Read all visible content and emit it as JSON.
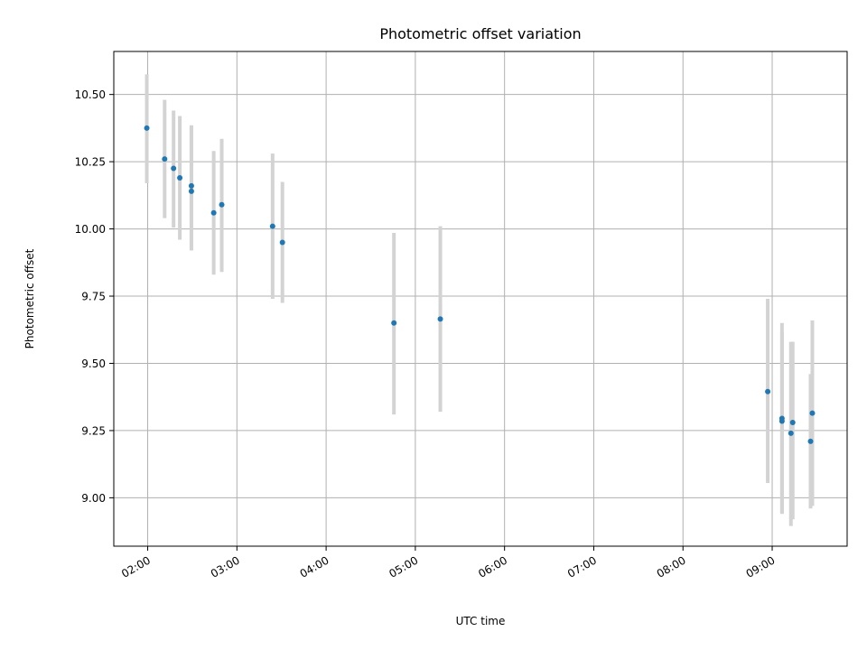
{
  "chart_data": {
    "type": "scatter",
    "title": "Photometric offset variation",
    "xlabel": "UTC time",
    "ylabel": "Photometric offset",
    "x_unit": "hours (UTC)",
    "xlim": [
      1.62,
      9.84
    ],
    "ylim": [
      8.82,
      10.66
    ],
    "grid": true,
    "x_ticks": [
      {
        "value": 2,
        "label": "02:00"
      },
      {
        "value": 3,
        "label": "03:00"
      },
      {
        "value": 4,
        "label": "04:00"
      },
      {
        "value": 5,
        "label": "05:00"
      },
      {
        "value": 6,
        "label": "06:00"
      },
      {
        "value": 7,
        "label": "07:00"
      },
      {
        "value": 8,
        "label": "08:00"
      },
      {
        "value": 9,
        "label": "09:00"
      }
    ],
    "y_ticks": [
      {
        "value": 9.0,
        "label": "9.00"
      },
      {
        "value": 9.25,
        "label": "9.25"
      },
      {
        "value": 9.5,
        "label": "9.50"
      },
      {
        "value": 9.75,
        "label": "9.75"
      },
      {
        "value": 10.0,
        "label": "10.00"
      },
      {
        "value": 10.25,
        "label": "10.25"
      },
      {
        "value": 10.5,
        "label": "10.50"
      }
    ],
    "point_color": "#1f77b4",
    "errorbar_color": "#d3d3d3",
    "points": [
      {
        "x": 1.99,
        "y": 10.375,
        "err_low": 10.17,
        "err_high": 10.575
      },
      {
        "x": 2.19,
        "y": 10.26,
        "err_low": 10.04,
        "err_high": 10.48
      },
      {
        "x": 2.29,
        "y": 10.225,
        "err_low": 10.005,
        "err_high": 10.44
      },
      {
        "x": 2.36,
        "y": 10.19,
        "err_low": 9.96,
        "err_high": 10.42
      },
      {
        "x": 2.49,
        "y": 10.16,
        "err_low": 9.92,
        "err_high": 10.385
      },
      {
        "x": 2.49,
        "y": 10.14,
        "err_low": 9.92,
        "err_high": 10.385
      },
      {
        "x": 2.74,
        "y": 10.06,
        "err_low": 9.83,
        "err_high": 10.29
      },
      {
        "x": 2.83,
        "y": 10.09,
        "err_low": 9.84,
        "err_high": 10.335
      },
      {
        "x": 3.4,
        "y": 10.01,
        "err_low": 9.74,
        "err_high": 10.28
      },
      {
        "x": 3.51,
        "y": 9.95,
        "err_low": 9.725,
        "err_high": 10.175
      },
      {
        "x": 4.76,
        "y": 9.65,
        "err_low": 9.31,
        "err_high": 9.985
      },
      {
        "x": 5.28,
        "y": 9.665,
        "err_low": 9.32,
        "err_high": 10.01
      },
      {
        "x": 8.95,
        "y": 9.395,
        "err_low": 9.055,
        "err_high": 9.74
      },
      {
        "x": 9.11,
        "y": 9.295,
        "err_low": 8.945,
        "err_high": 9.65
      },
      {
        "x": 9.11,
        "y": 9.285,
        "err_low": 8.94,
        "err_high": 9.615
      },
      {
        "x": 9.21,
        "y": 9.24,
        "err_low": 8.895,
        "err_high": 9.58
      },
      {
        "x": 9.23,
        "y": 9.28,
        "err_low": 8.92,
        "err_high": 9.58
      },
      {
        "x": 9.43,
        "y": 9.21,
        "err_low": 8.96,
        "err_high": 9.46
      },
      {
        "x": 9.45,
        "y": 9.315,
        "err_low": 8.97,
        "err_high": 9.66
      }
    ]
  }
}
